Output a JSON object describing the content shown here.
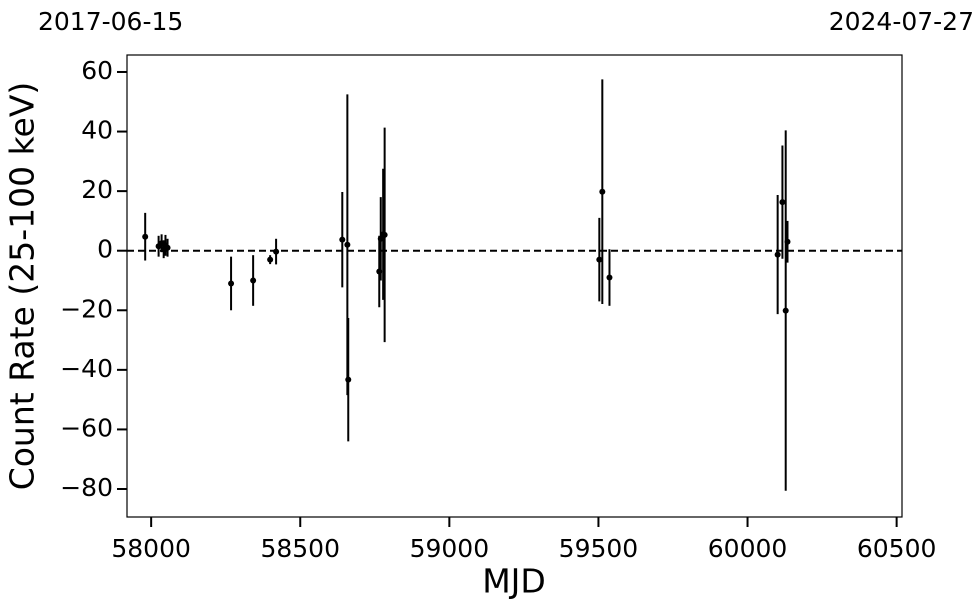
{
  "chart_data": {
    "type": "scatter",
    "annotations": [
      "2017-06-15",
      "2024-07-27"
    ],
    "x_label": "MJD",
    "y_label": "Count Rate (25-100 keV)",
    "x": [
      57980,
      58025,
      58035,
      58042,
      58048,
      58055,
      58268,
      58342,
      58399,
      58419,
      58641,
      58658,
      58661,
      58765,
      58770,
      58778,
      58783,
      59503,
      59513,
      59537,
      60101,
      60117,
      60128,
      60134
    ],
    "values": [
      4.7,
      1.5,
      2.5,
      0.5,
      1.8,
      1,
      -11,
      -10,
      -3,
      -0.3,
      3.7,
      2,
      -43.3,
      -7,
      4,
      5.5,
      5.3,
      -3,
      19.8,
      -9,
      -1.3,
      16.3,
      -20.1,
      3
    ],
    "errors": [
      8,
      3.5,
      3,
      3,
      3.5,
      3,
      9,
      8.5,
      1.5,
      4.3,
      16,
      50.5,
      20.7,
      12,
      14,
      22,
      36,
      14,
      37.7,
      9.5,
      20,
      19,
      60.5,
      7
    ],
    "color": "#000000",
    "hline": 0,
    "xlim": [
      57919,
      60518
    ],
    "ylim": [
      -89.4,
      65.7
    ],
    "xticks": [
      58000,
      58500,
      59000,
      59500,
      60000,
      60500
    ],
    "yticks": [
      {
        "value": -80,
        "label": "−80"
      },
      {
        "value": -60,
        "label": "−60"
      },
      {
        "value": -40,
        "label": "−40"
      },
      {
        "value": -20,
        "label": "−20"
      },
      0,
      20,
      40,
      60
    ]
  }
}
